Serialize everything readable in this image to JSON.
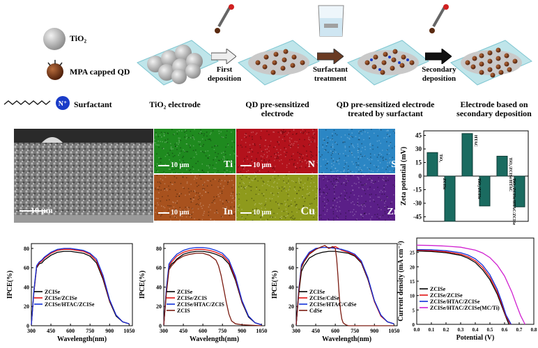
{
  "schematic": {
    "legend": {
      "tio2": "TiO₂",
      "qd": "MPA capped QD",
      "surfactant": "Surfactant",
      "surfactant_charge": "N⁺"
    },
    "steps": [
      {
        "id": "s1",
        "label": "TiO₂ electrode"
      },
      {
        "id": "s2",
        "label": "QD pre-sensitized electrode"
      },
      {
        "id": "s3",
        "label": "QD pre-sensitized electrode treated by surfactant"
      },
      {
        "id": "s4",
        "label": "Electrode based on secondary deposition"
      }
    ],
    "arrows": [
      "First deposition",
      "Surfactant treatment",
      "Secondary deposition"
    ]
  },
  "sem": {
    "scale": "10 μm"
  },
  "edx_maps": [
    {
      "element": "Ti",
      "scale": "10 μm",
      "color": "#1f8a1f"
    },
    {
      "element": "N",
      "scale": "10 μm",
      "color": "#b3121c"
    },
    {
      "element": "S",
      "scale": "",
      "color": "#2b86c4"
    },
    {
      "element": "In",
      "scale": "10 μm",
      "color": "#a8521e"
    },
    {
      "element": "Cu",
      "scale": "10 μm",
      "color": "#8e9a1c"
    },
    {
      "element": "Zr",
      "scale": "",
      "color": "#5b1f88"
    }
  ],
  "chart_data": [
    {
      "type": "bar",
      "ylabel": "Zeta potential (mV)",
      "ylim": [
        -50,
        50
      ],
      "yticks": [
        45,
        30,
        15,
        0,
        -15,
        -30,
        -45
      ],
      "categories": [
        "TiO₂",
        "ZCISe",
        "HTAC",
        "TiO₂/ZCISe",
        "TiO₂/ZCISe/HTAC",
        "TiO₂/ZCISe/HTAC/ZCISe"
      ],
      "values": [
        26,
        -50,
        47,
        -33,
        22,
        -34
      ]
    },
    {
      "type": "line",
      "xlabel": "Wavelength(nm)",
      "ylabel": "IPCE(%)",
      "xlim": [
        300,
        1075
      ],
      "ylim": [
        0,
        85
      ],
      "xticks": [
        300,
        450,
        600,
        750,
        900,
        1050
      ],
      "yticks": [
        0,
        20,
        40,
        60,
        80
      ],
      "legend_position": "left",
      "series": [
        {
          "name": "ZCISe",
          "color": "#000000",
          "x": [
            300,
            320,
            340,
            360,
            380,
            400,
            450,
            500,
            550,
            600,
            650,
            700,
            750,
            800,
            850,
            900,
            950,
            1000,
            1050
          ],
          "y": [
            1,
            35,
            60,
            64,
            65,
            68,
            73,
            76,
            77,
            77,
            76,
            75,
            72,
            65,
            48,
            25,
            10,
            4,
            2
          ]
        },
        {
          "name": "ZCISe/ZCISe",
          "color": "#e01010",
          "x": [
            300,
            320,
            340,
            360,
            380,
            400,
            450,
            500,
            550,
            600,
            650,
            700,
            750,
            800,
            850,
            900,
            950,
            1000,
            1050
          ],
          "y": [
            1,
            36,
            61,
            65,
            67,
            70,
            75,
            78,
            79,
            79,
            78,
            77,
            74,
            67,
            50,
            26,
            11,
            4,
            2
          ]
        },
        {
          "name": "ZCISe/HTAC/ZCISe",
          "color": "#1030d8",
          "x": [
            300,
            320,
            340,
            360,
            380,
            400,
            450,
            500,
            550,
            600,
            650,
            700,
            750,
            800,
            850,
            900,
            950,
            1000,
            1050
          ],
          "y": [
            1,
            37,
            62,
            66,
            68,
            71,
            76,
            79,
            80,
            80,
            79,
            78,
            75,
            69,
            52,
            27,
            11,
            4,
            2
          ]
        }
      ]
    },
    {
      "type": "line",
      "xlabel": "Wavelength(nm)",
      "ylabel": "IPCE(%)",
      "xlim": [
        300,
        1075
      ],
      "ylim": [
        0,
        85
      ],
      "xticks": [
        300,
        450,
        600,
        750,
        900,
        1050
      ],
      "yticks": [
        0,
        20,
        40,
        60,
        80
      ],
      "legend_position": "left",
      "series": [
        {
          "name": "ZCISe",
          "color": "#000000",
          "x": [
            300,
            320,
            340,
            360,
            380,
            400,
            450,
            500,
            550,
            600,
            650,
            700,
            750,
            800,
            850,
            900,
            950,
            1000,
            1050
          ],
          "y": [
            1,
            35,
            60,
            64,
            66,
            69,
            74,
            76,
            77,
            77,
            76,
            74,
            71,
            64,
            47,
            24,
            9,
            3,
            1
          ]
        },
        {
          "name": "ZCISe/ZCIS",
          "color": "#e01010",
          "x": [
            300,
            320,
            340,
            360,
            380,
            400,
            450,
            500,
            550,
            600,
            650,
            700,
            750,
            800,
            850,
            900,
            950,
            1000,
            1050
          ],
          "y": [
            1,
            37,
            62,
            66,
            69,
            72,
            76,
            78,
            79,
            79,
            78,
            76,
            73,
            66,
            49,
            25,
            10,
            3,
            1
          ]
        },
        {
          "name": "ZCISe/HTAC/ZCIS",
          "color": "#1030d8",
          "x": [
            300,
            320,
            340,
            360,
            380,
            400,
            450,
            500,
            550,
            600,
            650,
            700,
            750,
            800,
            850,
            900,
            950,
            1000,
            1050
          ],
          "y": [
            1,
            38,
            64,
            68,
            71,
            74,
            78,
            80,
            81,
            81,
            80,
            78,
            75,
            68,
            51,
            26,
            10,
            3,
            1
          ]
        },
        {
          "name": "ZCIS",
          "color": "#7a1a10",
          "x": [
            300,
            320,
            340,
            360,
            380,
            400,
            450,
            500,
            550,
            600,
            650,
            700,
            720,
            740,
            760,
            780,
            800,
            820,
            850,
            900,
            1050
          ],
          "y": [
            1,
            33,
            58,
            62,
            65,
            68,
            72,
            74,
            75,
            75,
            73,
            68,
            62,
            52,
            38,
            24,
            12,
            5,
            2,
            1,
            0
          ]
        }
      ]
    },
    {
      "type": "line",
      "xlabel": "Wavelength(nm)",
      "ylabel": "IPCE(%)",
      "xlim": [
        300,
        1075
      ],
      "ylim": [
        0,
        85
      ],
      "xticks": [
        300,
        450,
        600,
        750,
        900,
        1050
      ],
      "yticks": [
        0,
        20,
        40,
        60,
        80
      ],
      "legend_position": "left",
      "series": [
        {
          "name": "ZCISe",
          "color": "#000000",
          "x": [
            300,
            320,
            340,
            360,
            380,
            400,
            450,
            500,
            550,
            600,
            650,
            700,
            750,
            800,
            850,
            900,
            950,
            1000,
            1050
          ],
          "y": [
            1,
            33,
            56,
            62,
            66,
            70,
            74,
            76,
            77,
            77,
            76,
            75,
            72,
            65,
            48,
            25,
            10,
            4,
            2
          ]
        },
        {
          "name": "ZCISe/CdSe",
          "color": "#e01010",
          "x": [
            300,
            320,
            340,
            360,
            380,
            400,
            450,
            500,
            520,
            550,
            600,
            650,
            700,
            750,
            800,
            850,
            900,
            950,
            1000,
            1050
          ],
          "y": [
            1,
            36,
            62,
            67,
            71,
            75,
            79,
            82,
            83,
            80,
            82,
            78,
            76,
            73,
            66,
            49,
            25,
            10,
            4,
            2
          ]
        },
        {
          "name": "ZCISe/HTAC/CdSe",
          "color": "#1030d8",
          "x": [
            300,
            320,
            340,
            360,
            380,
            400,
            450,
            500,
            550,
            600,
            650,
            700,
            750,
            800,
            850,
            900,
            950,
            1000,
            1050
          ],
          "y": [
            1,
            37,
            63,
            68,
            72,
            76,
            80,
            81,
            81,
            80,
            79,
            77,
            74,
            67,
            50,
            26,
            11,
            4,
            2
          ]
        },
        {
          "name": "CdSe",
          "color": "#7a1a10",
          "x": [
            300,
            320,
            340,
            360,
            380,
            400,
            450,
            500,
            520,
            550,
            580,
            600,
            610,
            620,
            630,
            640,
            650,
            660,
            680,
            700,
            1050
          ],
          "y": [
            1,
            34,
            60,
            66,
            70,
            74,
            79,
            82,
            83,
            80,
            82,
            80,
            70,
            52,
            32,
            16,
            7,
            3,
            1,
            0,
            0
          ]
        }
      ]
    },
    {
      "type": "line",
      "xlabel": "Potential (V)",
      "ylabel": "Current density (mA cm⁻²)",
      "xlim": [
        0,
        0.8
      ],
      "ylim": [
        0,
        30
      ],
      "xticks": [
        0.0,
        0.1,
        0.2,
        0.3,
        0.4,
        0.5,
        0.6,
        0.7,
        0.8
      ],
      "yticks": [
        0,
        5,
        10,
        15,
        20,
        25
      ],
      "legend_position": "bottom-left",
      "series": [
        {
          "name": "ZCISe",
          "color": "#000000",
          "x": [
            0,
            0.1,
            0.2,
            0.3,
            0.35,
            0.4,
            0.45,
            0.5,
            0.55,
            0.58,
            0.61,
            0.63
          ],
          "y": [
            25.5,
            25.3,
            24.9,
            24.0,
            23.0,
            21.5,
            19.0,
            15.5,
            10.5,
            6.5,
            2.5,
            0
          ]
        },
        {
          "name": "ZCISe/ZCISe",
          "color": "#e01010",
          "x": [
            0,
            0.1,
            0.2,
            0.3,
            0.35,
            0.4,
            0.45,
            0.5,
            0.55,
            0.58,
            0.61,
            0.64
          ],
          "y": [
            25.8,
            25.6,
            25.2,
            24.4,
            23.5,
            22.1,
            19.8,
            16.3,
            11.3,
            7.2,
            2.8,
            0
          ]
        },
        {
          "name": "ZCISe/HTAC/ZCISe",
          "color": "#1030d8",
          "x": [
            0,
            0.1,
            0.2,
            0.3,
            0.35,
            0.4,
            0.45,
            0.5,
            0.55,
            0.58,
            0.61,
            0.645
          ],
          "y": [
            26.0,
            25.9,
            25.6,
            24.9,
            24.1,
            22.8,
            20.6,
            17.2,
            12.2,
            8.0,
            3.3,
            0
          ]
        },
        {
          "name": "ZCISe/HTAC/ZCISe(MC/Ti)",
          "color": "#d020d0",
          "x": [
            0,
            0.1,
            0.2,
            0.3,
            0.4,
            0.45,
            0.5,
            0.55,
            0.6,
            0.65,
            0.68,
            0.71,
            0.74
          ],
          "y": [
            27.5,
            27.4,
            27.2,
            26.8,
            25.8,
            24.8,
            23.2,
            20.6,
            16.8,
            11.2,
            7.0,
            3.0,
            0
          ]
        }
      ]
    }
  ]
}
